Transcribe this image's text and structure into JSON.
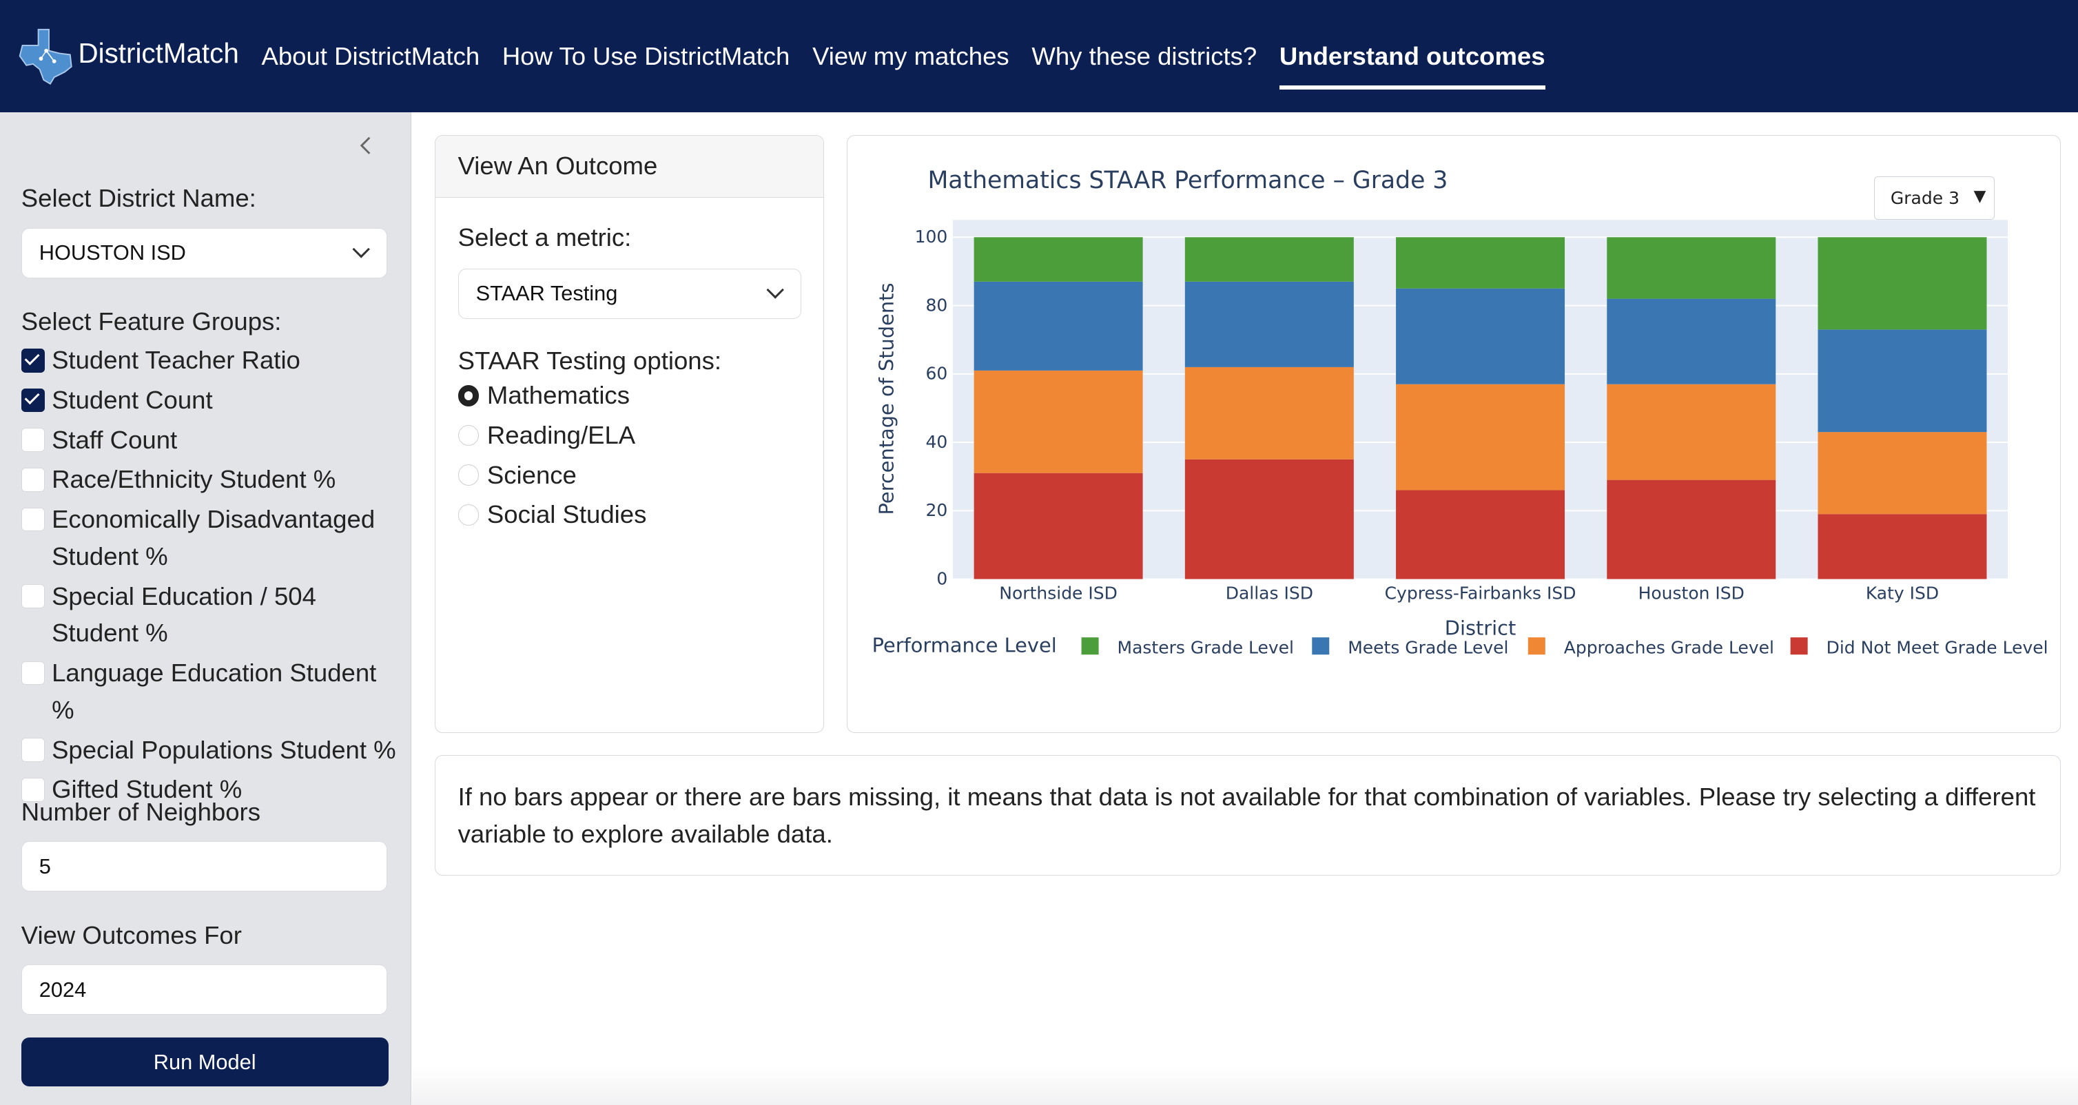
{
  "nav": {
    "brand": "DistrictMatch",
    "links": [
      "About DistrictMatch",
      "How To Use DistrictMatch",
      "View my matches",
      "Why these districts?",
      "Understand outcomes"
    ],
    "active_index": 4
  },
  "sidebar": {
    "district_label": "Select District Name:",
    "district_value": "HOUSTON ISD",
    "feature_groups_label": "Select Feature Groups:",
    "feature_groups": [
      {
        "label": "Student Teacher Ratio",
        "checked": true
      },
      {
        "label": "Student Count",
        "checked": true
      },
      {
        "label": "Staff Count",
        "checked": false
      },
      {
        "label": "Race/Ethnicity Student %",
        "checked": false
      },
      {
        "label": "Economically Disadvantaged Student %",
        "checked": false
      },
      {
        "label": "Special Education / 504 Student %",
        "checked": false
      },
      {
        "label": "Language Education Student %",
        "checked": false
      },
      {
        "label": "Special Populations Student %",
        "checked": false
      },
      {
        "label": "Gifted Student %",
        "checked": false
      }
    ],
    "neighbors_label": "Number of Neighbors",
    "neighbors_value": "5",
    "outcomes_for_label": "View Outcomes For",
    "outcomes_for_value": "2024",
    "run_button": "Run Model",
    "collapse_icon": "chevron-left-icon"
  },
  "outcome_card": {
    "title": "View An Outcome",
    "metric_label": "Select a metric:",
    "metric_value": "STAAR Testing",
    "options_label": "STAAR Testing options:",
    "options": [
      {
        "label": "Mathematics",
        "selected": true
      },
      {
        "label": "Reading/ELA",
        "selected": false
      },
      {
        "label": "Science",
        "selected": false
      },
      {
        "label": "Social Studies",
        "selected": false
      }
    ]
  },
  "chart_card": {
    "grade_dropdown": "Grade 3"
  },
  "chart_data": {
    "type": "bar",
    "stacked": true,
    "title": "Mathematics STAAR Performance – Grade 3",
    "xlabel": "District",
    "ylabel": "Percentage of Students",
    "ylim": [
      0,
      100
    ],
    "yticks": [
      0,
      20,
      40,
      60,
      80,
      100
    ],
    "grid": true,
    "legend_title": "Performance Level",
    "legend_position": "bottom",
    "categories": [
      "Northside ISD",
      "Dallas ISD",
      "Cypress-Fairbanks ISD",
      "Houston ISD",
      "Katy ISD"
    ],
    "series": [
      {
        "name": "Did Not Meet Grade Level",
        "color": "#c93a32",
        "values": [
          31,
          35,
          26,
          29,
          19
        ]
      },
      {
        "name": "Approaches Grade Level",
        "color": "#ef8735",
        "values": [
          30,
          27,
          31,
          28,
          24
        ]
      },
      {
        "name": "Meets Grade Level",
        "color": "#3a76b1",
        "values": [
          26,
          25,
          28,
          25,
          30
        ]
      },
      {
        "name": "Masters Grade Level",
        "color": "#4c9e3b",
        "values": [
          13,
          13,
          15,
          18,
          27
        ]
      }
    ],
    "legend_order": [
      "Masters Grade Level",
      "Meets Grade Level",
      "Approaches Grade Level",
      "Did Not Meet Grade Level"
    ]
  },
  "note": "If no bars appear or there are bars missing, it means that data is not available for that combination of variables. Please try selecting a different variable to explore available data."
}
